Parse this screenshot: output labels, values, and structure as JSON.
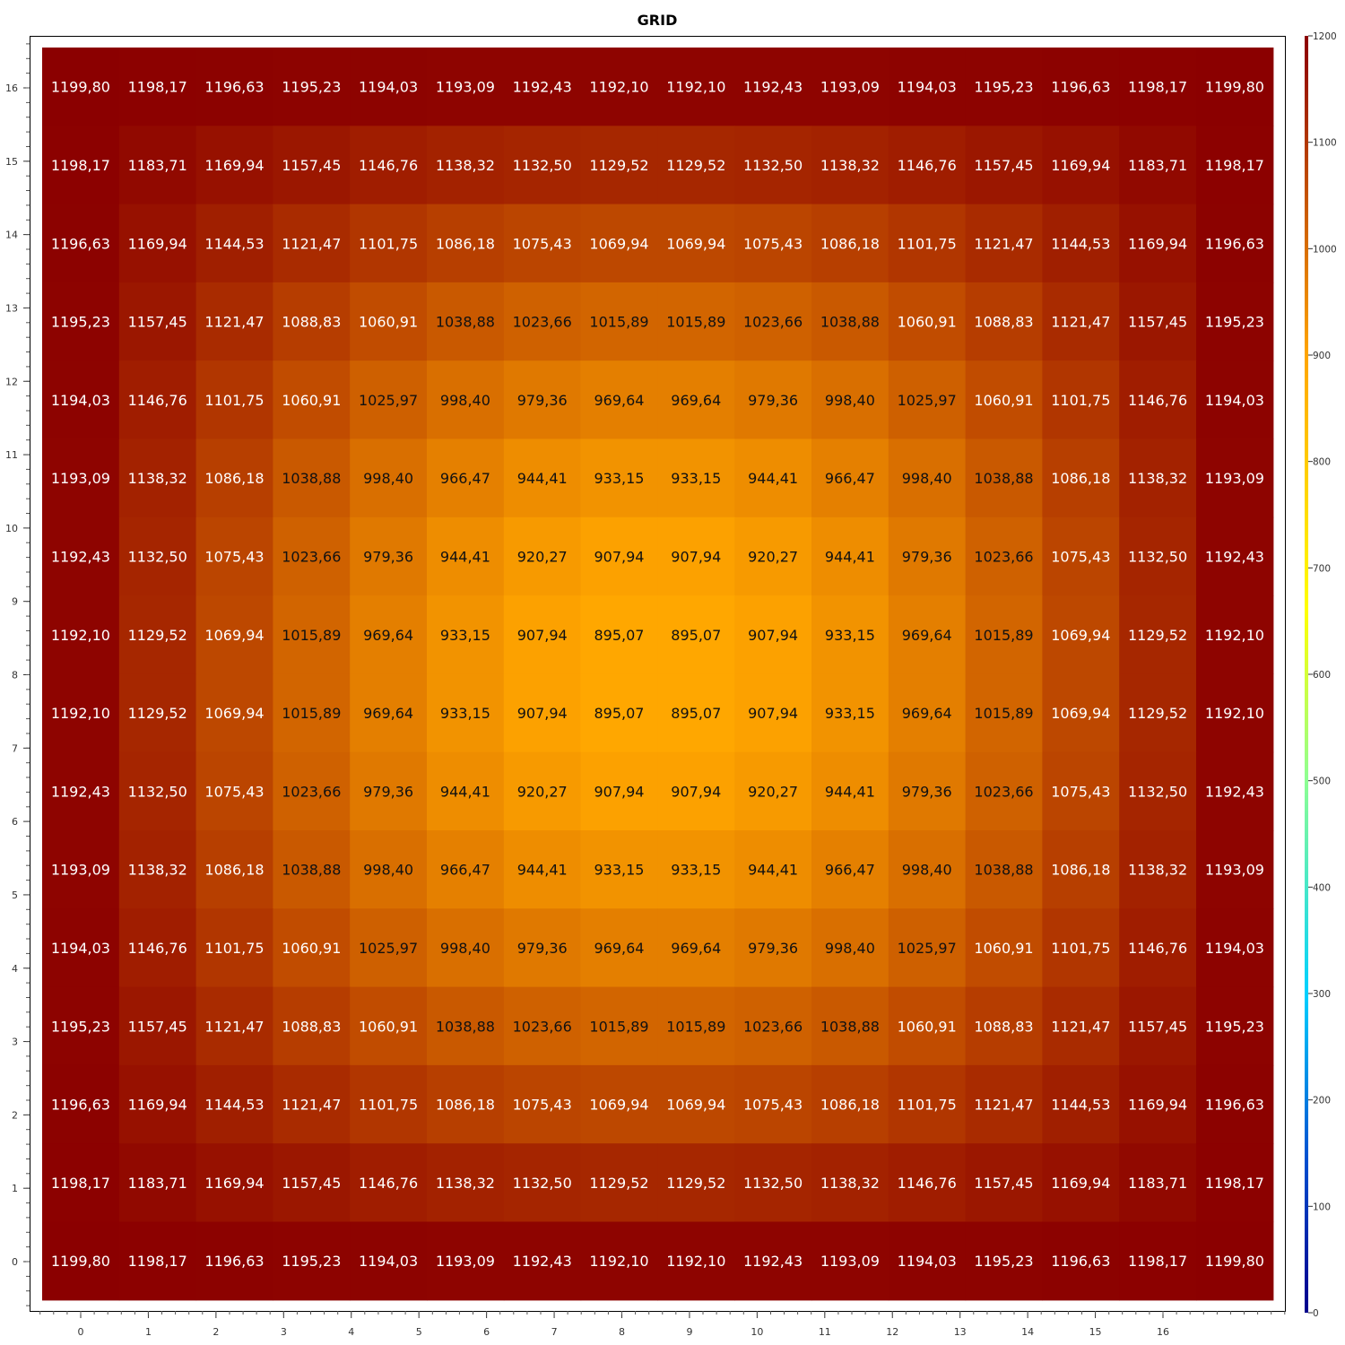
{
  "chart_data": {
    "type": "heatmap",
    "title": "GRID",
    "x": [
      0,
      1,
      2,
      3,
      4,
      5,
      6,
      7,
      8,
      9,
      10,
      11,
      12,
      13,
      14,
      15,
      16
    ],
    "y": [
      0,
      1,
      2,
      3,
      4,
      5,
      6,
      7,
      8,
      9,
      10,
      11,
      12,
      13,
      14,
      15,
      16
    ],
    "x_tick_labels": [
      "0",
      "1",
      "2",
      "3",
      "4",
      "5",
      "6",
      "7",
      "8",
      "9",
      "10",
      "11",
      "12",
      "13",
      "14",
      "15",
      "16"
    ],
    "y_tick_labels": [
      "0",
      "1",
      "2",
      "3",
      "4",
      "5",
      "6",
      "7",
      "8",
      "9",
      "10",
      "11",
      "12",
      "13",
      "14",
      "15",
      "16"
    ],
    "colorbar": {
      "min": 0,
      "max": 1200,
      "tick_labels": [
        "0",
        "100",
        "200",
        "300",
        "400",
        "500",
        "600",
        "700",
        "800",
        "900",
        "1000",
        "1100",
        "1200"
      ],
      "colors": [
        "#00008b",
        "#0050d0",
        "#00d0ff",
        "#90ff90",
        "#ffff00",
        "#ffa500",
        "#8b0000"
      ]
    },
    "decimal_separator": ",",
    "values_top_to_bottom": [
      [
        1199.8,
        1198.17,
        1196.63,
        1195.23,
        1194.03,
        1193.09,
        1192.43,
        1192.1,
        1192.1,
        1192.43,
        1193.09,
        1194.03,
        1195.23,
        1196.63,
        1198.17,
        1199.8
      ],
      [
        1198.17,
        1183.71,
        1169.94,
        1157.45,
        1146.76,
        1138.32,
        1132.5,
        1129.52,
        1129.52,
        1132.5,
        1138.32,
        1146.76,
        1157.45,
        1169.94,
        1183.71,
        1198.17
      ],
      [
        1196.63,
        1169.94,
        1144.53,
        1121.47,
        1101.75,
        1086.18,
        1075.43,
        1069.94,
        1069.94,
        1075.43,
        1086.18,
        1101.75,
        1121.47,
        1144.53,
        1169.94,
        1196.63
      ],
      [
        1195.23,
        1157.45,
        1121.47,
        1088.83,
        1060.91,
        1038.88,
        1023.66,
        1015.89,
        1015.89,
        1023.66,
        1038.88,
        1060.91,
        1088.83,
        1121.47,
        1157.45,
        1195.23
      ],
      [
        1194.03,
        1146.76,
        1101.75,
        1060.91,
        1025.97,
        998.4,
        979.36,
        969.64,
        969.64,
        979.36,
        998.4,
        1025.97,
        1060.91,
        1101.75,
        1146.76,
        1194.03
      ],
      [
        1193.09,
        1138.32,
        1086.18,
        1038.88,
        998.4,
        966.47,
        944.41,
        933.15,
        933.15,
        944.41,
        966.47,
        998.4,
        1038.88,
        1086.18,
        1138.32,
        1193.09
      ],
      [
        1192.43,
        1132.5,
        1075.43,
        1023.66,
        979.36,
        944.41,
        920.27,
        907.94,
        907.94,
        920.27,
        944.41,
        979.36,
        1023.66,
        1075.43,
        1132.5,
        1192.43
      ],
      [
        1192.1,
        1129.52,
        1069.94,
        1015.89,
        969.64,
        933.15,
        907.94,
        895.07,
        895.07,
        907.94,
        933.15,
        969.64,
        1015.89,
        1069.94,
        1129.52,
        1192.1
      ],
      [
        1192.1,
        1129.52,
        1069.94,
        1015.89,
        969.64,
        933.15,
        907.94,
        895.07,
        895.07,
        907.94,
        933.15,
        969.64,
        1015.89,
        1069.94,
        1129.52,
        1192.1
      ],
      [
        1192.43,
        1132.5,
        1075.43,
        1023.66,
        979.36,
        944.41,
        920.27,
        907.94,
        907.94,
        920.27,
        944.41,
        979.36,
        1023.66,
        1075.43,
        1132.5,
        1192.43
      ],
      [
        1193.09,
        1138.32,
        1086.18,
        1038.88,
        998.4,
        966.47,
        944.41,
        933.15,
        933.15,
        944.41,
        966.47,
        998.4,
        1038.88,
        1086.18,
        1138.32,
        1193.09
      ],
      [
        1194.03,
        1146.76,
        1101.75,
        1060.91,
        1025.97,
        998.4,
        979.36,
        969.64,
        969.64,
        979.36,
        998.4,
        1025.97,
        1060.91,
        1101.75,
        1146.76,
        1194.03
      ],
      [
        1195.23,
        1157.45,
        1121.47,
        1088.83,
        1060.91,
        1038.88,
        1023.66,
        1015.89,
        1015.89,
        1023.66,
        1038.88,
        1060.91,
        1088.83,
        1121.47,
        1157.45,
        1195.23
      ],
      [
        1196.63,
        1169.94,
        1144.53,
        1121.47,
        1101.75,
        1086.18,
        1075.43,
        1069.94,
        1069.94,
        1075.43,
        1086.18,
        1101.75,
        1121.47,
        1144.53,
        1169.94,
        1196.63
      ],
      [
        1198.17,
        1183.71,
        1169.94,
        1157.45,
        1146.76,
        1138.32,
        1132.5,
        1129.52,
        1129.52,
        1132.5,
        1138.32,
        1146.76,
        1157.45,
        1169.94,
        1183.71,
        1198.17
      ],
      [
        1199.8,
        1198.17,
        1196.63,
        1195.23,
        1194.03,
        1193.09,
        1192.43,
        1192.1,
        1192.1,
        1192.43,
        1193.09,
        1194.03,
        1195.23,
        1196.63,
        1198.17,
        1199.8
      ]
    ],
    "grid": false,
    "legend": "colorbar-right"
  }
}
